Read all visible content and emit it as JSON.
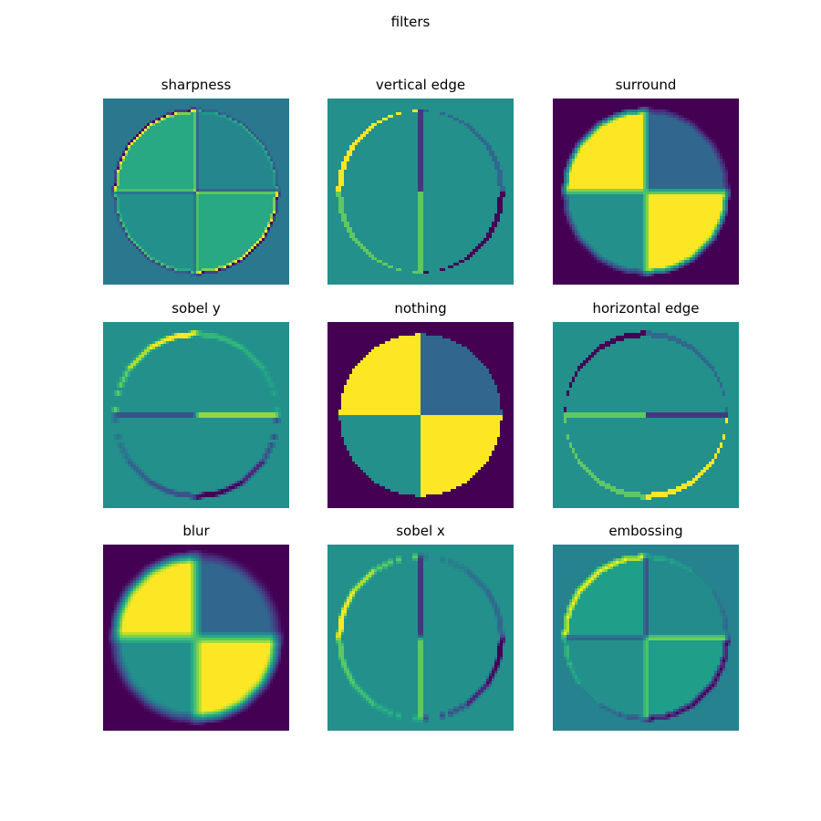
{
  "chart_data": {
    "type": "heatmap",
    "title": "filters",
    "colormap": "viridis",
    "grid": false,
    "axes_visible": false,
    "panels": [
      {
        "title": "sharpness"
      },
      {
        "title": "vertical edge"
      },
      {
        "title": "surround"
      },
      {
        "title": "sobel y"
      },
      {
        "title": "nothing"
      },
      {
        "title": "horizontal edge"
      },
      {
        "title": "blur"
      },
      {
        "title": "sobel x"
      },
      {
        "title": "embossing"
      }
    ]
  }
}
